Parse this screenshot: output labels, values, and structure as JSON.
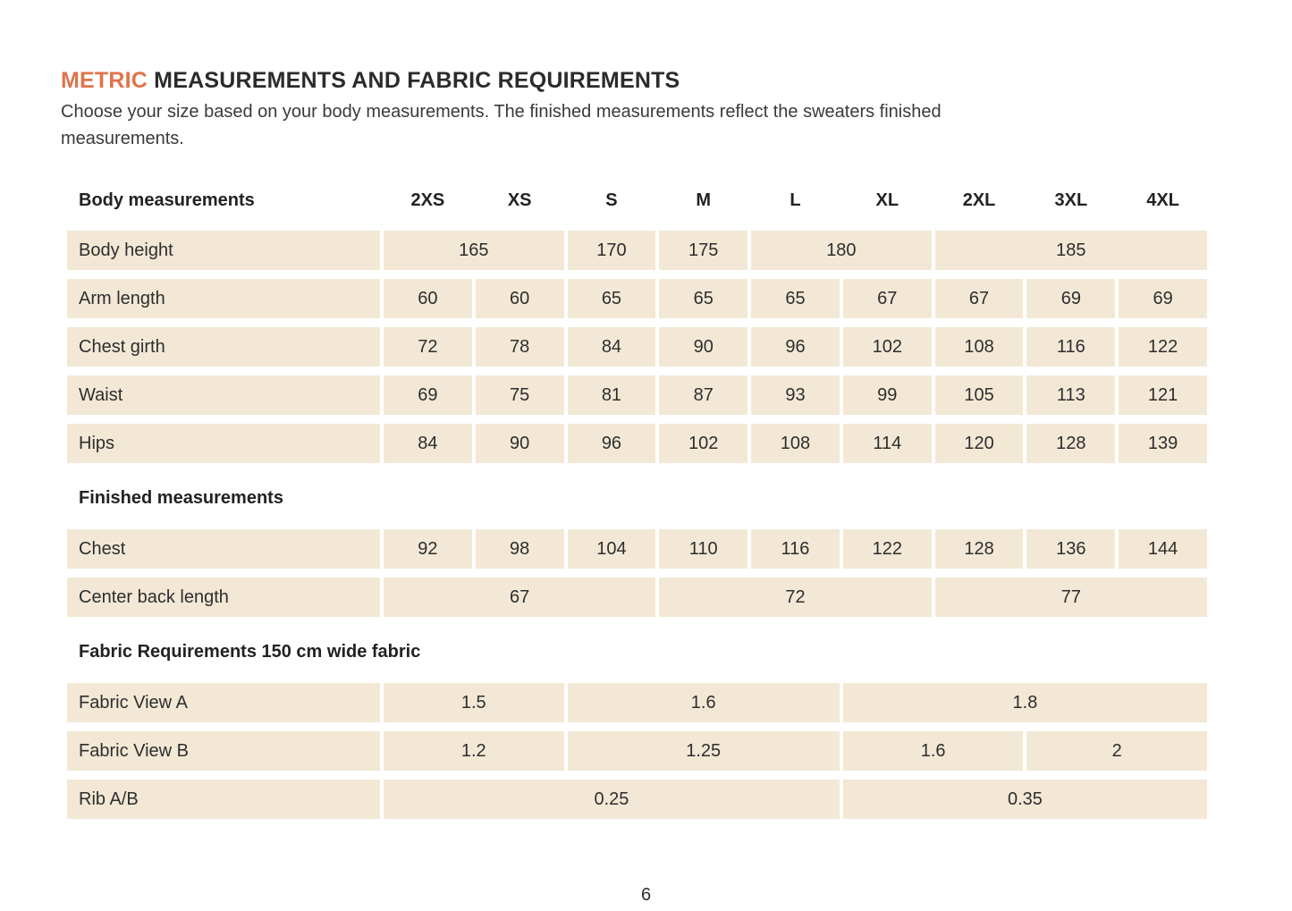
{
  "page": {
    "title_highlight": "METRIC",
    "title_rest": " MEASUREMENTS AND FABRIC REQUIREMENTS",
    "subtitle": "Choose your size based on your body measurements. The finished measurements reflect the sweaters finished measurements.",
    "page_number": "6"
  },
  "colors": {
    "accent_orange": "#e0734a",
    "cell_beige": "#f2e8d5",
    "text_dark": "#2e2e2e"
  },
  "table": {
    "header": {
      "label": "Body measurements",
      "sizes": [
        "2XS",
        "XS",
        "S",
        "M",
        "L",
        "XL",
        "2XL",
        "3XL",
        "4XL"
      ]
    },
    "sections": [
      {
        "heading": "",
        "rows": [
          {
            "label": "Body height",
            "cells": [
              {
                "value": "165",
                "span": 2
              },
              {
                "value": "170",
                "span": 1
              },
              {
                "value": "175",
                "span": 1
              },
              {
                "value": "180",
                "span": 2
              },
              {
                "value": "185",
                "span": 3
              }
            ]
          },
          {
            "label": "Arm length",
            "cells": [
              {
                "value": "60",
                "span": 1
              },
              {
                "value": "60",
                "span": 1
              },
              {
                "value": "65",
                "span": 1
              },
              {
                "value": "65",
                "span": 1
              },
              {
                "value": "65",
                "span": 1
              },
              {
                "value": "67",
                "span": 1
              },
              {
                "value": "67",
                "span": 1
              },
              {
                "value": "69",
                "span": 1
              },
              {
                "value": "69",
                "span": 1
              }
            ]
          },
          {
            "label": "Chest girth",
            "cells": [
              {
                "value": "72",
                "span": 1
              },
              {
                "value": "78",
                "span": 1
              },
              {
                "value": "84",
                "span": 1
              },
              {
                "value": "90",
                "span": 1
              },
              {
                "value": "96",
                "span": 1
              },
              {
                "value": "102",
                "span": 1
              },
              {
                "value": "108",
                "span": 1
              },
              {
                "value": "116",
                "span": 1
              },
              {
                "value": "122",
                "span": 1
              }
            ]
          },
          {
            "label": "Waist",
            "cells": [
              {
                "value": "69",
                "span": 1
              },
              {
                "value": "75",
                "span": 1
              },
              {
                "value": "81",
                "span": 1
              },
              {
                "value": "87",
                "span": 1
              },
              {
                "value": "93",
                "span": 1
              },
              {
                "value": "99",
                "span": 1
              },
              {
                "value": "105",
                "span": 1
              },
              {
                "value": "113",
                "span": 1
              },
              {
                "value": "121",
                "span": 1
              }
            ]
          },
          {
            "label": "Hips",
            "cells": [
              {
                "value": "84",
                "span": 1
              },
              {
                "value": "90",
                "span": 1
              },
              {
                "value": "96",
                "span": 1
              },
              {
                "value": "102",
                "span": 1
              },
              {
                "value": "108",
                "span": 1
              },
              {
                "value": "114",
                "span": 1
              },
              {
                "value": "120",
                "span": 1
              },
              {
                "value": "128",
                "span": 1
              },
              {
                "value": "139",
                "span": 1
              }
            ]
          }
        ]
      },
      {
        "heading": "Finished measurements",
        "rows": [
          {
            "label": "Chest",
            "cells": [
              {
                "value": "92",
                "span": 1
              },
              {
                "value": "98",
                "span": 1
              },
              {
                "value": "104",
                "span": 1
              },
              {
                "value": "110",
                "span": 1
              },
              {
                "value": "116",
                "span": 1
              },
              {
                "value": "122",
                "span": 1
              },
              {
                "value": "128",
                "span": 1
              },
              {
                "value": "136",
                "span": 1
              },
              {
                "value": "144",
                "span": 1
              }
            ]
          },
          {
            "label": "Center back length",
            "cells": [
              {
                "value": "67",
                "span": 3
              },
              {
                "value": "72",
                "span": 3
              },
              {
                "value": "77",
                "span": 3
              }
            ]
          }
        ]
      },
      {
        "heading": "Fabric Requirements 150 cm wide fabric",
        "rows": [
          {
            "label": "Fabric View A",
            "cells": [
              {
                "value": "1.5",
                "span": 2
              },
              {
                "value": "1.6",
                "span": 3
              },
              {
                "value": "1.8",
                "span": 4
              }
            ]
          },
          {
            "label": "Fabric View B",
            "cells": [
              {
                "value": "1.2",
                "span": 2
              },
              {
                "value": "1.25",
                "span": 3
              },
              {
                "value": "1.6",
                "span": 2
              },
              {
                "value": "2",
                "span": 2
              }
            ]
          },
          {
            "label": "Rib A/B",
            "cells": [
              {
                "value": "0.25",
                "span": 5
              },
              {
                "value": "0.35",
                "span": 4
              }
            ]
          }
        ]
      }
    ]
  }
}
